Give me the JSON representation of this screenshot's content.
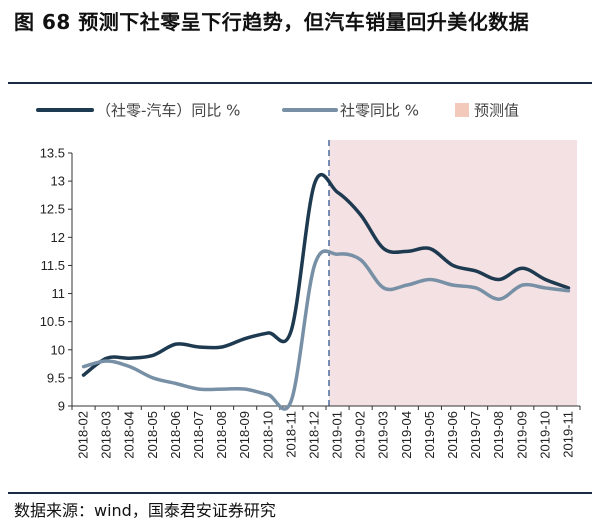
{
  "figure": {
    "title": "图 68 预测下社零呈下行趋势，但汽车销量回升美化数据",
    "source": "数据来源：wind，国泰君安证券研究"
  },
  "chart_data": {
    "type": "line",
    "title": "",
    "xlabel": "",
    "ylabel": "",
    "ylim": [
      9,
      13.5
    ],
    "yticks": [
      9,
      9.5,
      10,
      10.5,
      11,
      11.5,
      12,
      12.5,
      13,
      13.5
    ],
    "ytick_labels": [
      "9",
      "9.5",
      "10",
      "10.5",
      "11",
      "11.5",
      "12",
      "12.5",
      "13",
      "13.5"
    ],
    "categories": [
      "2018-02",
      "2018-03",
      "2018-04",
      "2018-05",
      "2018-06",
      "2018-07",
      "2018-08",
      "2018-09",
      "2018-10",
      "2018-11",
      "2018-12",
      "2019-01",
      "2019-02",
      "2019-03",
      "2019-04",
      "2019-05",
      "2019-06",
      "2019-07",
      "2019-08",
      "2019-09",
      "2019-10",
      "2019-11"
    ],
    "legend_position": "top",
    "grid": false,
    "forecast": {
      "label": "预测值",
      "start": "2019-01",
      "end": "2019-11",
      "color": "#f4e1e3"
    },
    "series": [
      {
        "name": "（社零-汽车）同比 %",
        "color": "#1e3a50",
        "values": [
          9.55,
          9.85,
          9.85,
          9.9,
          10.1,
          10.05,
          10.05,
          10.2,
          10.3,
          10.35,
          12.95,
          12.8,
          12.4,
          11.8,
          11.75,
          11.8,
          11.5,
          11.4,
          11.25,
          11.45,
          11.25,
          11.1
        ]
      },
      {
        "name": "社零同比 %",
        "color": "#7890a6",
        "values": [
          9.7,
          9.8,
          9.7,
          9.5,
          9.4,
          9.3,
          9.3,
          9.3,
          9.2,
          9.1,
          11.5,
          11.7,
          11.6,
          11.1,
          11.15,
          11.25,
          11.15,
          11.1,
          10.9,
          11.15,
          11.1,
          11.05
        ]
      }
    ]
  }
}
